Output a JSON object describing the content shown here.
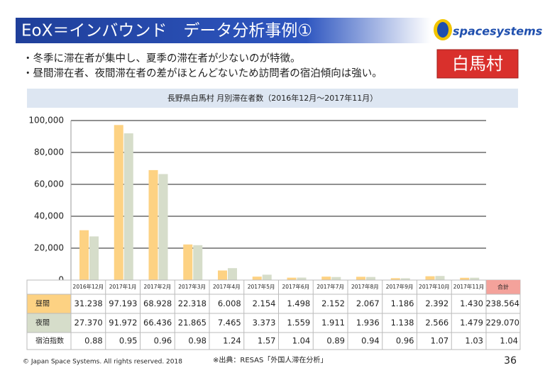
{
  "header": {
    "title": "EoX＝インバウンド　データ分析事例①",
    "logo": "spacesystems"
  },
  "bullets": [
    "・冬季に滞在者が集中し、夏季の滞在者が少ないのが特徴。",
    "・昼間滞在者、夜間滞在者の差がほとんどないため訪問者の宿泊傾向は強い。"
  ],
  "badge": "白馬村",
  "chart_data": {
    "type": "bar",
    "title": "長野県白馬村 月別滞在者数（2016年12月～2017年11月）",
    "categories": [
      "2016年12月",
      "2017年1月",
      "2017年2月",
      "2017年3月",
      "2017年4月",
      "2017年5月",
      "2017年6月",
      "2017年7月",
      "2017年8月",
      "2017年9月",
      "2017年10月",
      "2017年11月"
    ],
    "series": [
      {
        "name": "昼間",
        "color": "#fdd283",
        "values": [
          31238,
          97193,
          68928,
          22318,
          6008,
          2154,
          1498,
          2152,
          2067,
          1186,
          2392,
          1430
        ],
        "value_labels": [
          "31.238",
          "97.193",
          "68.928",
          "22.318",
          "6.008",
          "2.154",
          "1.498",
          "2.152",
          "2.067",
          "1.186",
          "2.392",
          "1.430"
        ],
        "total": 238564,
        "total_label": "238.564"
      },
      {
        "name": "夜間",
        "color": "#d6ddca",
        "values": [
          27370,
          91972,
          66436,
          21865,
          7465,
          3373,
          1559,
          1911,
          1936,
          1138,
          2566,
          1479
        ],
        "value_labels": [
          "27.370",
          "91.972",
          "66.436",
          "21.865",
          "7.465",
          "3.373",
          "1.559",
          "1.911",
          "1.936",
          "1.138",
          "2.566",
          "1.479"
        ],
        "total": 229070,
        "total_label": "229.070"
      }
    ],
    "table": {
      "total_header": "合計",
      "index_name": "宿泊指数",
      "index_values": [
        0.88,
        0.95,
        0.96,
        0.98,
        1.24,
        1.57,
        1.04,
        0.89,
        0.94,
        0.96,
        1.07,
        1.03
      ],
      "index_total": 1.04
    },
    "ylim": [
      0,
      100000
    ],
    "yticks": [
      0,
      {
        "value": 20000,
        "label": "20,000"
      },
      {
        "value": 40000,
        "label": "40,000"
      },
      {
        "value": 60000,
        "label": "60,000"
      },
      {
        "value": 80000,
        "label": "80,000"
      },
      {
        "value": 100000,
        "label": "100,000"
      }
    ],
    "grid": true
  },
  "footer": {
    "copyright": "© Japan Space Systems. All rights reserved. 2018",
    "source": "※出典：RESAS「外国人滞在分析」",
    "page": 36
  }
}
